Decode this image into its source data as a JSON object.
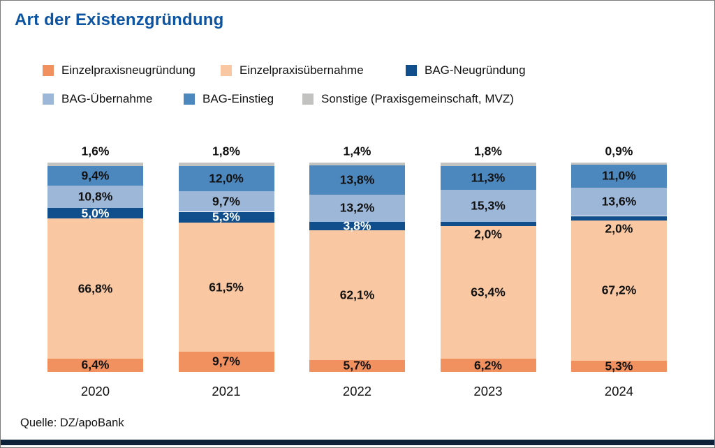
{
  "title": "Art der Existenzgründung",
  "source": "Quelle: DZ/apoBank",
  "colors": {
    "title_blue": "#0D55A2",
    "footer_bar": "#0E2138",
    "label_dark": "#111111",
    "label_light": "#FFFFFF"
  },
  "chart_data": {
    "type": "bar",
    "stacked": true,
    "title": "Art der Existenzgründung",
    "unit": "%",
    "ylim": [
      0,
      100
    ],
    "grid": false,
    "legend_position": "top",
    "value_label_format": "german-decimal-percent",
    "categories": [
      "2020",
      "2021",
      "2022",
      "2023",
      "2024"
    ],
    "series": [
      {
        "name": "Einzelpraxisneugründung",
        "color": "#F29160",
        "label_color": "#111111",
        "values": [
          6.4,
          9.7,
          5.7,
          6.2,
          5.3
        ]
      },
      {
        "name": "Einzelpraxisübernahme",
        "color": "#F9C7A1",
        "label_color": "#111111",
        "values": [
          66.8,
          61.5,
          62.1,
          63.4,
          67.2
        ]
      },
      {
        "name": "BAG-Neugründung",
        "color": "#104F8C",
        "label_color": "#FFFFFF",
        "values": [
          5.0,
          5.3,
          3.8,
          2.0,
          2.0
        ]
      },
      {
        "name": "BAG-Übernahme",
        "color": "#9DB7D9",
        "label_color": "#111111",
        "values": [
          10.8,
          9.7,
          13.2,
          15.3,
          13.6
        ]
      },
      {
        "name": "BAG-Einstieg",
        "color": "#4C87BD",
        "label_color": "#111111",
        "values": [
          9.4,
          12.0,
          13.8,
          11.3,
          11.0
        ]
      },
      {
        "name": "Sonstige (Praxisgemeinschaft, MVZ)",
        "color": "#C2C2C0",
        "label_color": "#111111",
        "values": [
          1.6,
          1.8,
          1.4,
          1.8,
          0.9
        ]
      }
    ],
    "legend_rows": [
      [
        0,
        1,
        2
      ],
      [
        3,
        4,
        5
      ]
    ]
  }
}
